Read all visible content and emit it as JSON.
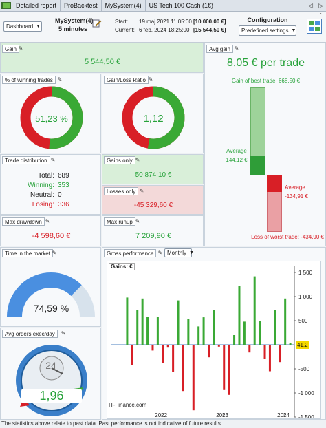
{
  "tabs": {
    "items": [
      {
        "label": "Detailed report"
      },
      {
        "label": "ProBacktest"
      },
      {
        "label": "MySystem(4)"
      },
      {
        "label": "US Tech 100 Cash (1€)"
      }
    ],
    "nav_prev": "◁",
    "nav_next": "▷"
  },
  "header": {
    "view_select": "Dashboard",
    "system_name": "MySystem(4)",
    "timeframe": "5 minutes",
    "start_label": "Start:",
    "start_date": "19 maj 2021 11:05:00",
    "start_capital": "[10 000,00 €]",
    "current_label": "Current:",
    "current_date": "6 feb. 2024 18:25:00",
    "current_capital": "[15 544,50 €]",
    "config_title": "Configuration",
    "config_select": "Predefined settings"
  },
  "gain": {
    "title": "Gain",
    "value": "5 544,50 €"
  },
  "avg_gain": {
    "title": "Avg gain",
    "value": "8,05 € per trade",
    "best_label": "Gain of best trade: 668,50 €",
    "avg_win_label": "Average",
    "avg_win_value": "144,12 €",
    "avg_loss_label": "Average",
    "avg_loss_value": "-134,91 €",
    "worst_label": "Loss of worst trade: -434,90 €",
    "best": 668.5,
    "avg_win": 144.12,
    "avg_loss": -134.91,
    "worst": -434.9
  },
  "winning": {
    "title": "% of winning trades",
    "value": "51,23 %",
    "fraction": 0.5123
  },
  "gainloss": {
    "title": "Gain/Loss Ratio",
    "value": "1,12",
    "fraction": 0.528
  },
  "distribution": {
    "title": "Trade distribution",
    "total_label": "Total:",
    "total": "689",
    "winning_label": "Winning:",
    "winning": "353",
    "neutral_label": "Neutral:",
    "neutral": "0",
    "losing_label": "Losing:",
    "losing": "336"
  },
  "gains_only": {
    "title": "Gains only",
    "value": "50 874,10 €"
  },
  "losses_only": {
    "title": "Losses only",
    "value": "-45 329,60 €"
  },
  "max_drawdown": {
    "title": "Max drawdown",
    "value": "-4 598,60 €"
  },
  "max_runup": {
    "title": "Max runup",
    "value": "7 209,90 €"
  },
  "time_in_market": {
    "title": "Time in the market",
    "value": "74,59 %",
    "fraction": 0.7459
  },
  "avg_orders": {
    "title": "Avg orders exec/day",
    "value": "1,96",
    "dial": "24"
  },
  "gross": {
    "title": "Gross performance",
    "period": "Monthly",
    "legend": "Gains: €",
    "watermark": "IT-Finance.com",
    "last_value": "41,2"
  },
  "footer": {
    "text": "The statistics above relate to past data. Past performance is not indicative of future results."
  },
  "colors": {
    "green": "#3aa935",
    "red": "#d81f26",
    "blue": "#4a8fe0",
    "light_green": "#d9efd9",
    "light_red": "#f3d9d9"
  },
  "chart_data": {
    "type": "bar",
    "title": "Gains: €",
    "x": [
      "2021-05",
      "2021-06",
      "2021-07",
      "2021-08",
      "2021-09",
      "2021-10",
      "2021-11",
      "2021-12",
      "2022-01",
      "2022-02",
      "2022-03",
      "2022-04",
      "2022-05",
      "2022-06",
      "2022-07",
      "2022-08",
      "2022-09",
      "2022-10",
      "2022-11",
      "2022-12",
      "2023-01",
      "2023-02",
      "2023-03",
      "2023-04",
      "2023-05",
      "2023-06",
      "2023-07",
      "2023-08",
      "2023-09",
      "2023-10",
      "2023-11",
      "2023-12",
      "2024-01",
      "2024-02"
    ],
    "values": [
      0,
      980,
      -420,
      720,
      960,
      580,
      -120,
      580,
      -380,
      -60,
      -570,
      920,
      -960,
      540,
      -1360,
      380,
      570,
      -260,
      720,
      -40,
      -940,
      -1040,
      200,
      1220,
      480,
      -160,
      1420,
      500,
      -300,
      -550,
      720,
      -360,
      960,
      40
    ],
    "x_ticks": [
      "2022",
      "2023",
      "2024"
    ],
    "y_ticks": [
      1500,
      1000,
      500,
      -500,
      -1000,
      -1500
    ],
    "y_tick_labels": [
      "1 500",
      "1 000",
      "500",
      "-500",
      "-1 000",
      "-1 500"
    ],
    "ylim": [
      -1500,
      1500
    ],
    "grid": false
  }
}
